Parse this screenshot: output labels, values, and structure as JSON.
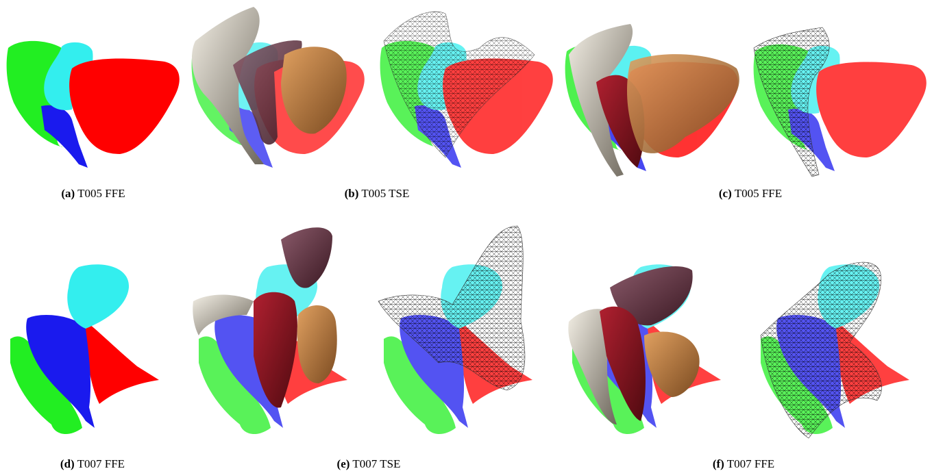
{
  "figures": [
    {
      "label": "(a)",
      "caption": "T005 FFE"
    },
    {
      "label": "(b)",
      "caption": "T005 TSE"
    },
    {
      "label": "(c)",
      "caption": "T005 FFE"
    },
    {
      "label": "(d)",
      "caption": "T007 FFE"
    },
    {
      "label": "(e)",
      "caption": "T007 TSE"
    },
    {
      "label": "(f)",
      "caption": "T007 FFE"
    }
  ]
}
